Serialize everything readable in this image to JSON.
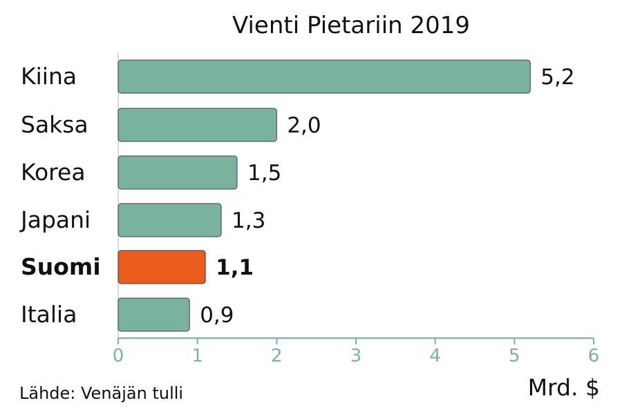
{
  "chart_data": {
    "type": "bar",
    "orientation": "horizontal",
    "title": "Vienti Pietariin 2019",
    "categories": [
      "Kiina",
      "Saksa",
      "Korea",
      "Japani",
      "Suomi",
      "Italia"
    ],
    "values": [
      5.2,
      2.0,
      1.5,
      1.3,
      1.1,
      0.9
    ],
    "value_labels": [
      "5,2",
      "2,0",
      "1,5",
      "1,3",
      "1,1",
      "0,9"
    ],
    "highlight": "Suomi",
    "xlabel": "Mrd. $",
    "ylabel": "",
    "xlim": [
      0,
      6
    ],
    "x_ticks": [
      "0",
      "1",
      "2",
      "3",
      "4",
      "5",
      "6"
    ],
    "grid": false,
    "source": "Lähde: Venäjän tulli"
  },
  "colors": {
    "bar": "#79b39e",
    "highlight": "#ea5d1c",
    "axis": "#79b39e",
    "text": "#111111"
  }
}
